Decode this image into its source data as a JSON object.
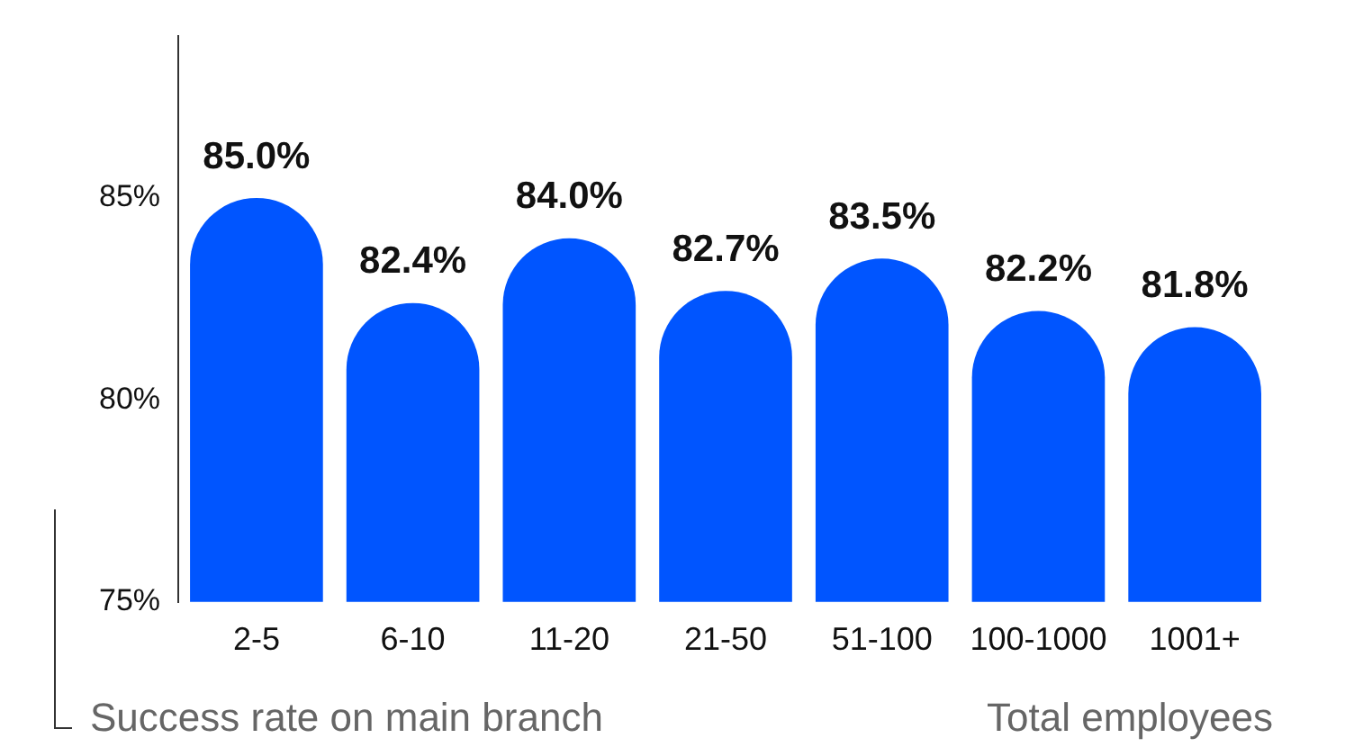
{
  "chart_data": {
    "type": "bar",
    "xlabel": "Total employees",
    "ylabel": "Success rate on main branch",
    "categories": [
      "2-5",
      "6-10",
      "11-20",
      "21-50",
      "51-100",
      "100-1000",
      "1001+"
    ],
    "values": [
      85.0,
      82.4,
      84.0,
      82.7,
      83.5,
      82.2,
      81.8
    ],
    "value_labels": [
      "85.0%",
      "82.4%",
      "84.0%",
      "82.7%",
      "83.5%",
      "82.2%",
      "81.8%"
    ],
    "color": "#0055ff",
    "ylim": [
      75,
      89
    ],
    "yticks": [
      {
        "value": 75,
        "label": "75%"
      },
      {
        "value": 80,
        "label": "80%"
      },
      {
        "value": 85,
        "label": "85%"
      }
    ],
    "grid": false,
    "legend": false
  }
}
